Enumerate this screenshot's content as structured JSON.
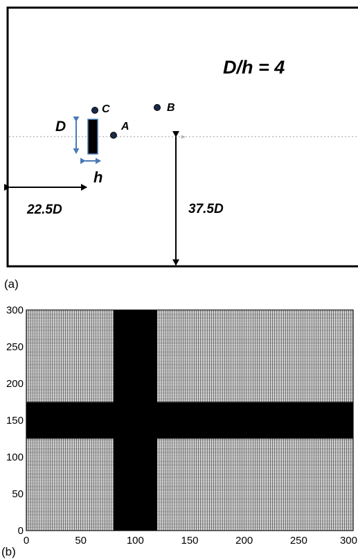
{
  "panel_a": {
    "letter": "(a)",
    "ratio_label": "D/h = 4",
    "points": [
      {
        "name": "A",
        "label": "A"
      },
      {
        "name": "B",
        "label": "B"
      },
      {
        "name": "C",
        "label": "C"
      }
    ],
    "dim_D": "D",
    "dim_h": "h",
    "upstream_label": "22.5D",
    "lateral_label": "37.5D",
    "colors": {
      "arrow_blue": "#4a7ab5",
      "ink": "#000000",
      "point_fill": "#1a2a4a"
    }
  },
  "panel_b": {
    "letter": "(b)",
    "xlim": [
      0,
      300
    ],
    "ylim": [
      0,
      300
    ],
    "x_ticks": [
      "0",
      "50",
      "100",
      "150",
      "200",
      "250",
      "300"
    ],
    "y_ticks": [
      "0",
      "50",
      "100",
      "150",
      "200",
      "250",
      "300"
    ],
    "x_ticks_values": [
      0,
      50,
      100,
      150,
      200,
      250,
      300
    ],
    "y_ticks_values": [
      0,
      50,
      100,
      150,
      200,
      250,
      300
    ],
    "dense_x_band": [
      80,
      120
    ],
    "dense_y_band": [
      125,
      175
    ]
  }
}
